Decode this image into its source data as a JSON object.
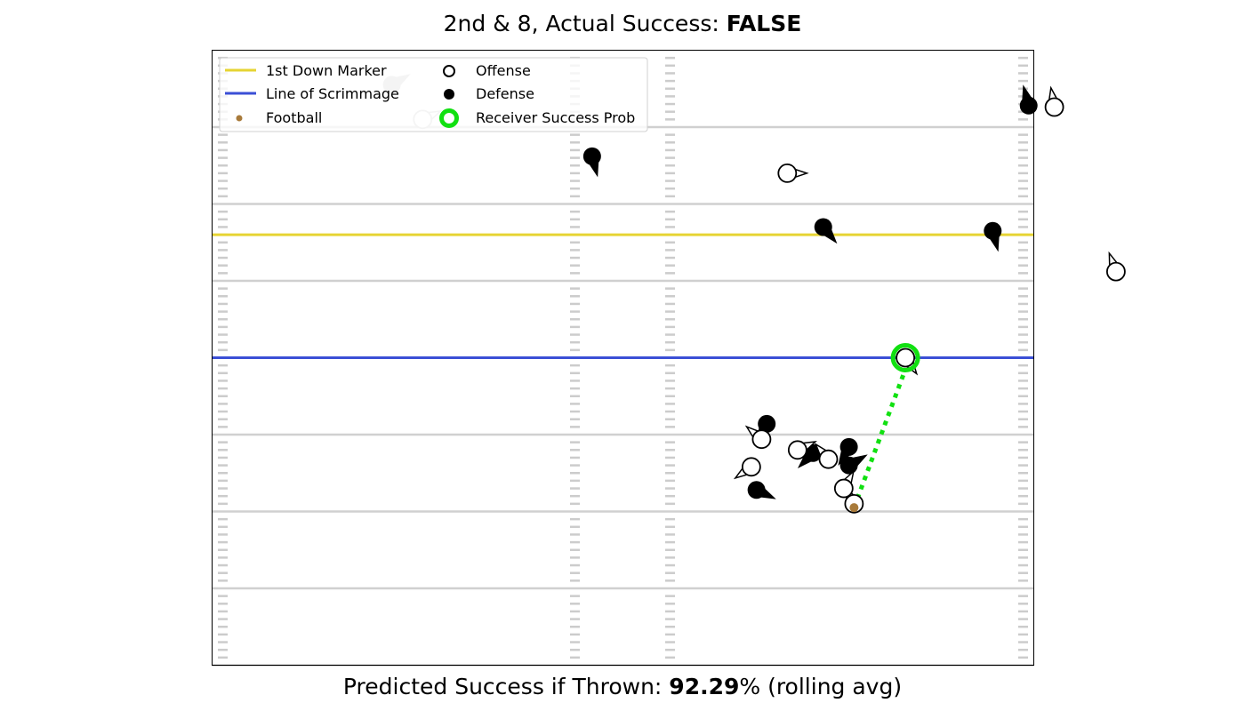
{
  "title": {
    "prefix": "2nd & 8, Actual Success: ",
    "value": "FALSE"
  },
  "caption": {
    "prefix": "Predicted Success if Thrown: ",
    "value": "92.29",
    "suffix": "% (rolling avg)"
  },
  "legend": {
    "first_down": "1st Down Marker",
    "scrimmage": "Line of Scrimmage",
    "football": "Football",
    "offense": "Offense",
    "defense": "Defense",
    "receiver": "Receiver Success Prob"
  },
  "colors": {
    "first_down": "#e6d433",
    "scrimmage": "#3b4fd6",
    "football": "#a87a3a",
    "receiver": "#11e011",
    "yard_line": "#d0d0d0",
    "hash": "#cccccc",
    "offense_face": "#ffffff",
    "defense_face": "#000000",
    "faded": "#c8c8c8"
  },
  "chart_data": {
    "type": "scatter",
    "yard_lines_y": [
      0,
      10,
      20,
      30,
      40,
      50,
      60,
      70
    ],
    "first_down_y": 56,
    "scrimmage_y": 40,
    "football": {
      "x": 62.5,
      "y": 20.5
    },
    "pass_line": {
      "from": [
        62.5,
        20.5
      ],
      "to": [
        67.5,
        38.5
      ]
    },
    "receiver": {
      "x": 67.5,
      "y": 40.0
    },
    "offense": [
      {
        "x": 20.5,
        "y": 71.0,
        "ang": 25,
        "faded": true
      },
      {
        "x": 56.0,
        "y": 64.0,
        "ang": 0
      },
      {
        "x": 82.0,
        "y": 72.6,
        "ang": 100
      },
      {
        "x": 88.0,
        "y": 51.2,
        "ang": 110
      },
      {
        "x": 67.5,
        "y": 40.0,
        "ang": -55
      },
      {
        "x": 53.5,
        "y": 29.4,
        "ang": 140
      },
      {
        "x": 52.5,
        "y": 25.8,
        "ang": -145
      },
      {
        "x": 57.0,
        "y": 28.0,
        "ang": 25
      },
      {
        "x": 60.0,
        "y": 26.8,
        "ang": 130
      },
      {
        "x": 62.5,
        "y": 21.0,
        "ang": 120
      },
      {
        "x": 61.5,
        "y": 23.0,
        "ang": 60
      }
    ],
    "defense": [
      {
        "x": 17.5,
        "y": 75.5,
        "ang": 30,
        "faded": true
      },
      {
        "x": 37.0,
        "y": 66.2,
        "ang": -75
      },
      {
        "x": 59.5,
        "y": 57.0,
        "ang": -50
      },
      {
        "x": 76.0,
        "y": 56.5,
        "ang": -75
      },
      {
        "x": 79.5,
        "y": 72.8,
        "ang": 105
      },
      {
        "x": 54.0,
        "y": 31.4,
        "ang": -120
      },
      {
        "x": 53.0,
        "y": 22.8,
        "ang": -25
      },
      {
        "x": 58.5,
        "y": 27.6,
        "ang": -135
      },
      {
        "x": 62.0,
        "y": 28.4,
        "ang": -120
      },
      {
        "x": 62.0,
        "y": 26.0,
        "ang": 30
      }
    ]
  }
}
